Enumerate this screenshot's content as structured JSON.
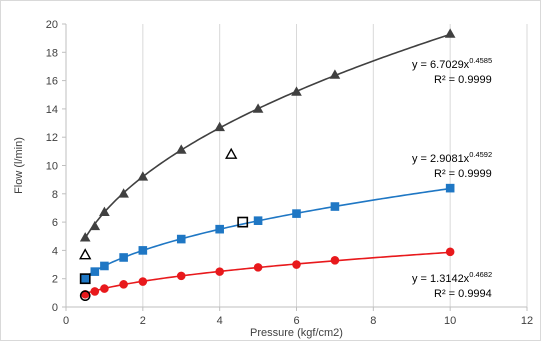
{
  "chart_data": {
    "type": "scatter",
    "xlabel": "Pressure (kgf/cm2)",
    "ylabel": "Flow (l/min)",
    "xlim": [
      0,
      12
    ],
    "ylim": [
      0,
      20
    ],
    "x_ticks": [
      "0",
      "2",
      "4",
      "6",
      "8",
      "10",
      "12"
    ],
    "y_ticks": [
      "0",
      "2",
      "4",
      "6",
      "8",
      "10",
      "12",
      "14",
      "16",
      "18",
      "20"
    ],
    "grid": "vertical",
    "series": [
      {
        "marker": "triangle",
        "color": "#404040",
        "fit": {
          "type": "power",
          "a": 6.7029,
          "b": 0.4585
        },
        "x": [
          0.5,
          0.75,
          1.0,
          1.5,
          2.0,
          3.0,
          4.0,
          5.0,
          6.0,
          7.0,
          10.0
        ],
        "y": [
          4.9,
          5.7,
          6.7,
          8.0,
          9.2,
          11.1,
          12.7,
          14.0,
          15.2,
          16.4,
          19.3
        ],
        "equation": "y = 6.7029x",
        "exponent": "0.4585",
        "r2": "R² = 0.9999"
      },
      {
        "marker": "square",
        "color": "#1f77c4",
        "fit": {
          "type": "power",
          "a": 2.9081,
          "b": 0.4592
        },
        "x": [
          0.5,
          0.75,
          1.0,
          1.5,
          2.0,
          3.0,
          4.0,
          5.0,
          6.0,
          7.0,
          10.0
        ],
        "y": [
          2.0,
          2.5,
          2.9,
          3.5,
          4.0,
          4.8,
          5.5,
          6.1,
          6.6,
          7.1,
          8.4
        ],
        "equation": "y = 2.9081x",
        "exponent": "0.4592",
        "r2": "R² = 0.9999"
      },
      {
        "marker": "circle",
        "color": "#e8191c",
        "fit": {
          "type": "power",
          "a": 1.3142,
          "b": 0.4682
        },
        "x": [
          0.5,
          0.75,
          1.0,
          1.5,
          2.0,
          3.0,
          4.0,
          5.0,
          6.0,
          7.0,
          10.0
        ],
        "y": [
          0.9,
          1.1,
          1.3,
          1.6,
          1.8,
          2.2,
          2.5,
          2.8,
          3.0,
          3.3,
          3.9
        ],
        "equation": "y = 1.3142x",
        "exponent": "0.4682",
        "r2": "R² = 0.9994"
      }
    ],
    "open_markers": [
      {
        "marker": "triangle",
        "x": 0.5,
        "y": 3.7
      },
      {
        "marker": "triangle",
        "x": 4.3,
        "y": 10.8
      },
      {
        "marker": "square",
        "x": 0.5,
        "y": 2.0
      },
      {
        "marker": "square",
        "x": 4.6,
        "y": 6.0
      },
      {
        "marker": "circle",
        "x": 0.5,
        "y": 0.8
      }
    ]
  }
}
